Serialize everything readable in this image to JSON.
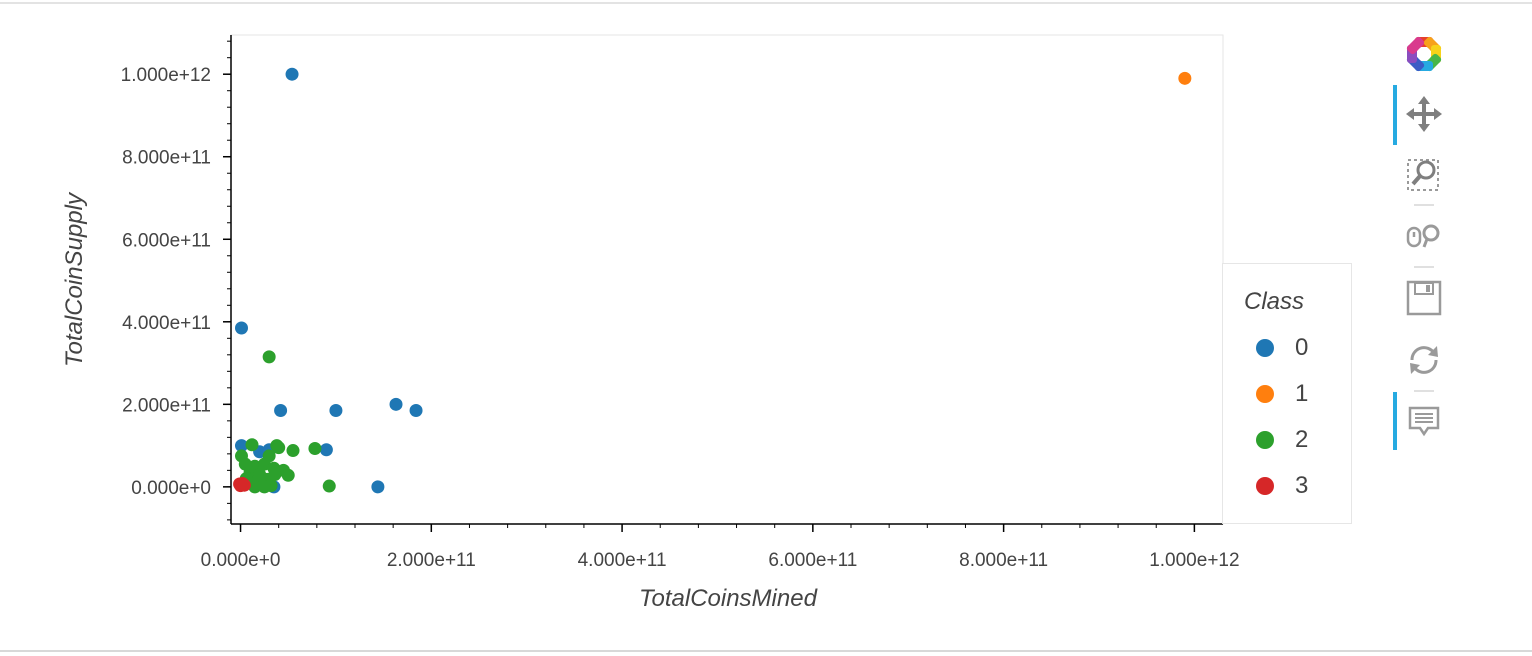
{
  "chart_data": {
    "type": "scatter",
    "xlabel": "TotalCoinsMined",
    "ylabel": "TotalCoinSupply",
    "xlim": [
      -10000000000.0,
      1030000000000.0
    ],
    "ylim": [
      -90000000000.0,
      1095000000000.0
    ],
    "x_ticks": [
      0,
      200000000000.0,
      400000000000.0,
      600000000000.0,
      800000000000.0,
      1000000000000.0
    ],
    "x_tick_labels": [
      "0.000e+0",
      "2.000e+11",
      "4.000e+11",
      "6.000e+11",
      "8.000e+11",
      "1.000e+12"
    ],
    "y_ticks": [
      0,
      200000000000.0,
      400000000000.0,
      600000000000.0,
      800000000000.0,
      1000000000000.0
    ],
    "y_tick_labels": [
      "0.000e+0",
      "2.000e+11",
      "4.000e+11",
      "6.000e+11",
      "8.000e+11",
      "1.000e+12"
    ],
    "grid": false,
    "legend_position": "right",
    "series": [
      {
        "name": "0",
        "color": "#1f77b4",
        "points": [
          [
            54000000000.0,
            1000000000000.0
          ],
          [
            1000000000.0,
            385000000000.0
          ],
          [
            42000000000.0,
            185000000000.0
          ],
          [
            100000000000.0,
            185000000000.0
          ],
          [
            163000000000.0,
            200000000000.0
          ],
          [
            184000000000.0,
            185000000000.0
          ],
          [
            144000000000.0,
            0.0
          ],
          [
            90000000000.0,
            90000000000.0
          ],
          [
            1000000000.0,
            100000000000.0
          ],
          [
            20000000000.0,
            85000000000.0
          ],
          [
            30000000000.0,
            90000000000.0
          ],
          [
            35000000000.0,
            0.0
          ],
          [
            25000000000.0,
            5000000000.0
          ]
        ]
      },
      {
        "name": "1",
        "color": "#ff7f0e",
        "points": [
          [
            990000000000.0,
            990000000000.0
          ]
        ]
      },
      {
        "name": "2",
        "color": "#2ca02c",
        "points": [
          [
            30000000000.0,
            315000000000.0
          ],
          [
            12000000000.0,
            102000000000.0
          ],
          [
            38000000000.0,
            100000000000.0
          ],
          [
            40000000000.0,
            95000000000.0
          ],
          [
            55000000000.0,
            88000000000.0
          ],
          [
            78000000000.0,
            93000000000.0
          ],
          [
            1000000000.0,
            75000000000.0
          ],
          [
            30000000000.0,
            75000000000.0
          ],
          [
            5000000000.0,
            55000000000.0
          ],
          [
            15000000000.0,
            50000000000.0
          ],
          [
            25000000000.0,
            55000000000.0
          ],
          [
            35000000000.0,
            45000000000.0
          ],
          [
            45000000000.0,
            40000000000.0
          ],
          [
            10000000000.0,
            35000000000.0
          ],
          [
            20000000000.0,
            30000000000.0
          ],
          [
            50000000000.0,
            28000000000.0
          ],
          [
            8000000000.0,
            20000000000.0
          ],
          [
            18000000000.0,
            15000000000.0
          ],
          [
            28000000000.0,
            18000000000.0
          ],
          [
            4000000000.0,
            10000000000.0
          ],
          [
            12000000000.0,
            8000000000.0
          ],
          [
            22000000000.0,
            5000000000.0
          ],
          [
            32000000000.0,
            3000000000.0
          ],
          [
            93000000000.0,
            2000000000.0
          ],
          [
            15000000000.0,
            0.0
          ],
          [
            25000000000.0,
            0.0
          ],
          [
            6000000000.0,
            20000000000.0
          ],
          [
            36000000000.0,
            30000000000.0
          ]
        ]
      },
      {
        "name": "3",
        "color": "#d62728",
        "points": [
          [
            -1000000000.0,
            7000000000.0
          ],
          [
            1000000000.0,
            5000000000.0
          ],
          [
            3000000000.0,
            6000000000.0
          ],
          [
            0.0,
            3000000000.0
          ],
          [
            2000000000.0,
            8000000000.0
          ],
          [
            4000000000.0,
            4000000000.0
          ]
        ]
      }
    ]
  },
  "legend": {
    "title": "Class",
    "items": [
      {
        "label": "0",
        "color": "#1f77b4"
      },
      {
        "label": "1",
        "color": "#ff7f0e"
      },
      {
        "label": "2",
        "color": "#2ca02c"
      },
      {
        "label": "3",
        "color": "#d62728"
      }
    ]
  },
  "toolbar": {
    "tools": [
      {
        "name": "bokeh-logo-icon",
        "active": false
      },
      {
        "name": "pan-icon",
        "active": true
      },
      {
        "name": "box-zoom-icon",
        "active": false
      },
      {
        "name": "wheel-zoom-icon",
        "active": false
      },
      {
        "name": "save-icon",
        "active": false
      },
      {
        "name": "reset-icon",
        "active": false
      },
      {
        "name": "hover-icon",
        "active": true
      }
    ]
  }
}
